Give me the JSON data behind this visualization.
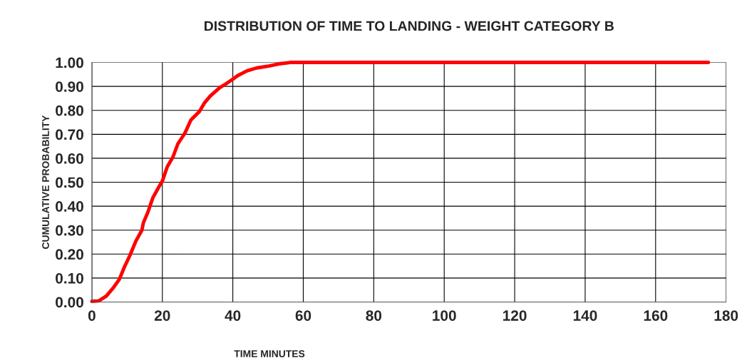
{
  "chart_data": {
    "type": "line",
    "title": "DISTRIBUTION OF TIME TO LANDING - WEIGHT CATEGORY B",
    "xlabel": "TIME MINUTES",
    "ylabel": "CUMULATIVE PROBABILITY",
    "xlim": [
      0,
      180
    ],
    "xticks": [
      0,
      20,
      40,
      60,
      80,
      100,
      120,
      140,
      160,
      180
    ],
    "ylim": [
      0,
      1
    ],
    "yticks": [
      {
        "value": 0,
        "label": "0.00"
      },
      {
        "value": 0.1,
        "label": "0.10"
      },
      {
        "value": 0.2,
        "label": "0.20"
      },
      {
        "value": 0.3,
        "label": "0.30"
      },
      {
        "value": 0.4,
        "label": "0.40"
      },
      {
        "value": 0.5,
        "label": "0.50"
      },
      {
        "value": 0.6,
        "label": "0.60"
      },
      {
        "value": 0.7,
        "label": "0.70"
      },
      {
        "value": 0.8,
        "label": "0.80"
      },
      {
        "value": 0.9,
        "label": "0.90"
      },
      {
        "value": 1,
        "label": "1.00"
      }
    ],
    "grid": true,
    "marker": "none",
    "line_style": "solid",
    "series": [
      {
        "color": "#ff0000",
        "x": [
          0,
          2,
          4.1,
          6.1,
          7.8,
          9.2,
          10.8,
          12.5,
          14.2,
          14.6,
          15.9,
          17.3,
          19,
          20,
          21.4,
          23,
          24.4,
          26.4,
          28.1,
          30.5,
          31.9,
          33.6,
          36.3,
          38,
          40,
          41.4,
          44,
          46.8,
          50.2,
          53.6,
          56.3,
          175
        ],
        "values": [
          0.003,
          0.005,
          0.025,
          0.06,
          0.095,
          0.145,
          0.195,
          0.255,
          0.3,
          0.33,
          0.375,
          0.435,
          0.48,
          0.505,
          0.565,
          0.605,
          0.66,
          0.705,
          0.76,
          0.795,
          0.83,
          0.86,
          0.895,
          0.91,
          0.93,
          0.945,
          0.965,
          0.977,
          0.985,
          0.995,
          1,
          1
        ]
      }
    ]
  }
}
